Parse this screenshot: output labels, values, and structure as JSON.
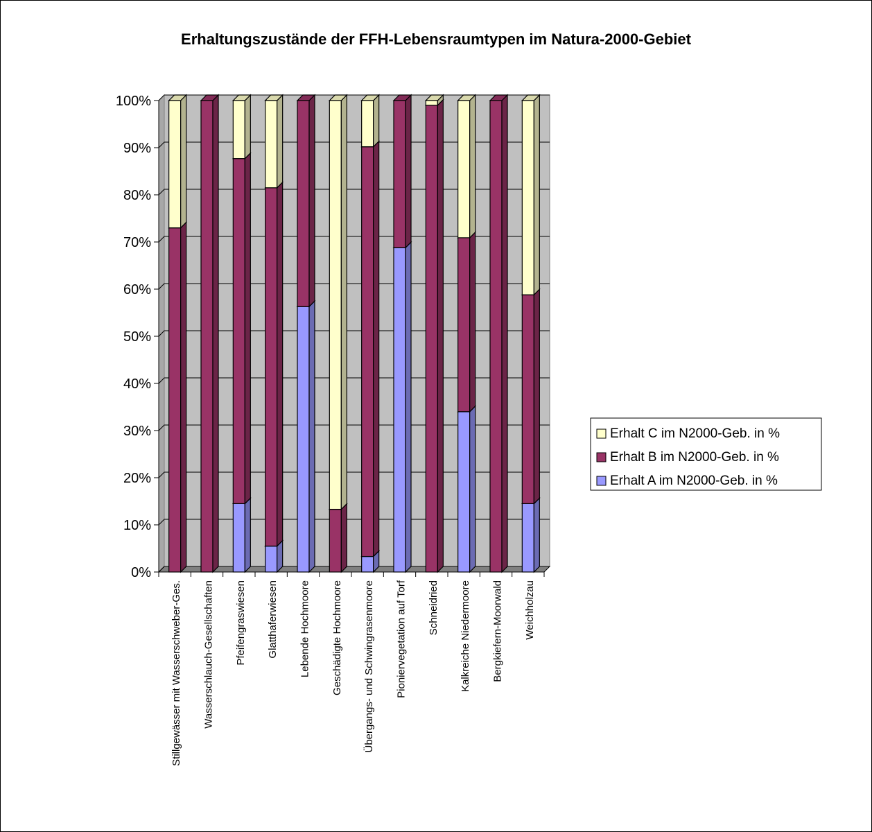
{
  "chart_data": {
    "type": "bar",
    "stacked": true,
    "three_d": true,
    "title": "Erhaltungszustände der FFH-Lebensraumtypen im Natura-2000-Gebiet",
    "xlabel": "",
    "ylabel": "",
    "ylim": [
      0,
      100
    ],
    "y_tick_labels": [
      "0%",
      "10%",
      "20%",
      "30%",
      "40%",
      "50%",
      "60%",
      "70%",
      "80%",
      "90%",
      "100%"
    ],
    "grid": true,
    "legend_position": "right",
    "categories": [
      "Stillgewässer mit Wasserschweber-Ges.",
      "Wasserschlauch-Gesellschaften",
      "Pfeifengraswiesen",
      "Glatthaferwiesen",
      "Lebende Hochmoore",
      "Geschädigte Hochmoore",
      "Übergangs- und Schwingrasenmoore",
      "Pioniervegetation auf Torf",
      "Schneidried",
      "Kalkreiche Niedermoore",
      "Bergkiefern-Moorwald",
      "Weichholzau"
    ],
    "series": [
      {
        "name": "Erhalt A im N2000-Geb. in %",
        "color": "#9999ff",
        "values": [
          0,
          0,
          14.5,
          5.5,
          56.3,
          0,
          3.3,
          68.8,
          0,
          34,
          0,
          14.5
        ]
      },
      {
        "name": "Erhalt B im N2000-Geb. in %",
        "color": "#993366",
        "values": [
          73,
          100,
          73.2,
          76,
          43.7,
          13.3,
          86.9,
          31.2,
          99,
          36.9,
          100,
          44.3
        ]
      },
      {
        "name": "Erhalt C im N2000-Geb. in %",
        "color": "#ffffcc",
        "values": [
          27,
          0,
          12.3,
          18.5,
          0,
          86.7,
          9.8,
          0,
          1,
          29.1,
          0,
          41.2
        ]
      }
    ],
    "legend_order": [
      "Erhalt C im N2000-Geb. in %",
      "Erhalt B im N2000-Geb. in %",
      "Erhalt A im N2000-Geb. in %"
    ],
    "wall_color": "#c0c0c0",
    "floor_color": "#808080"
  }
}
